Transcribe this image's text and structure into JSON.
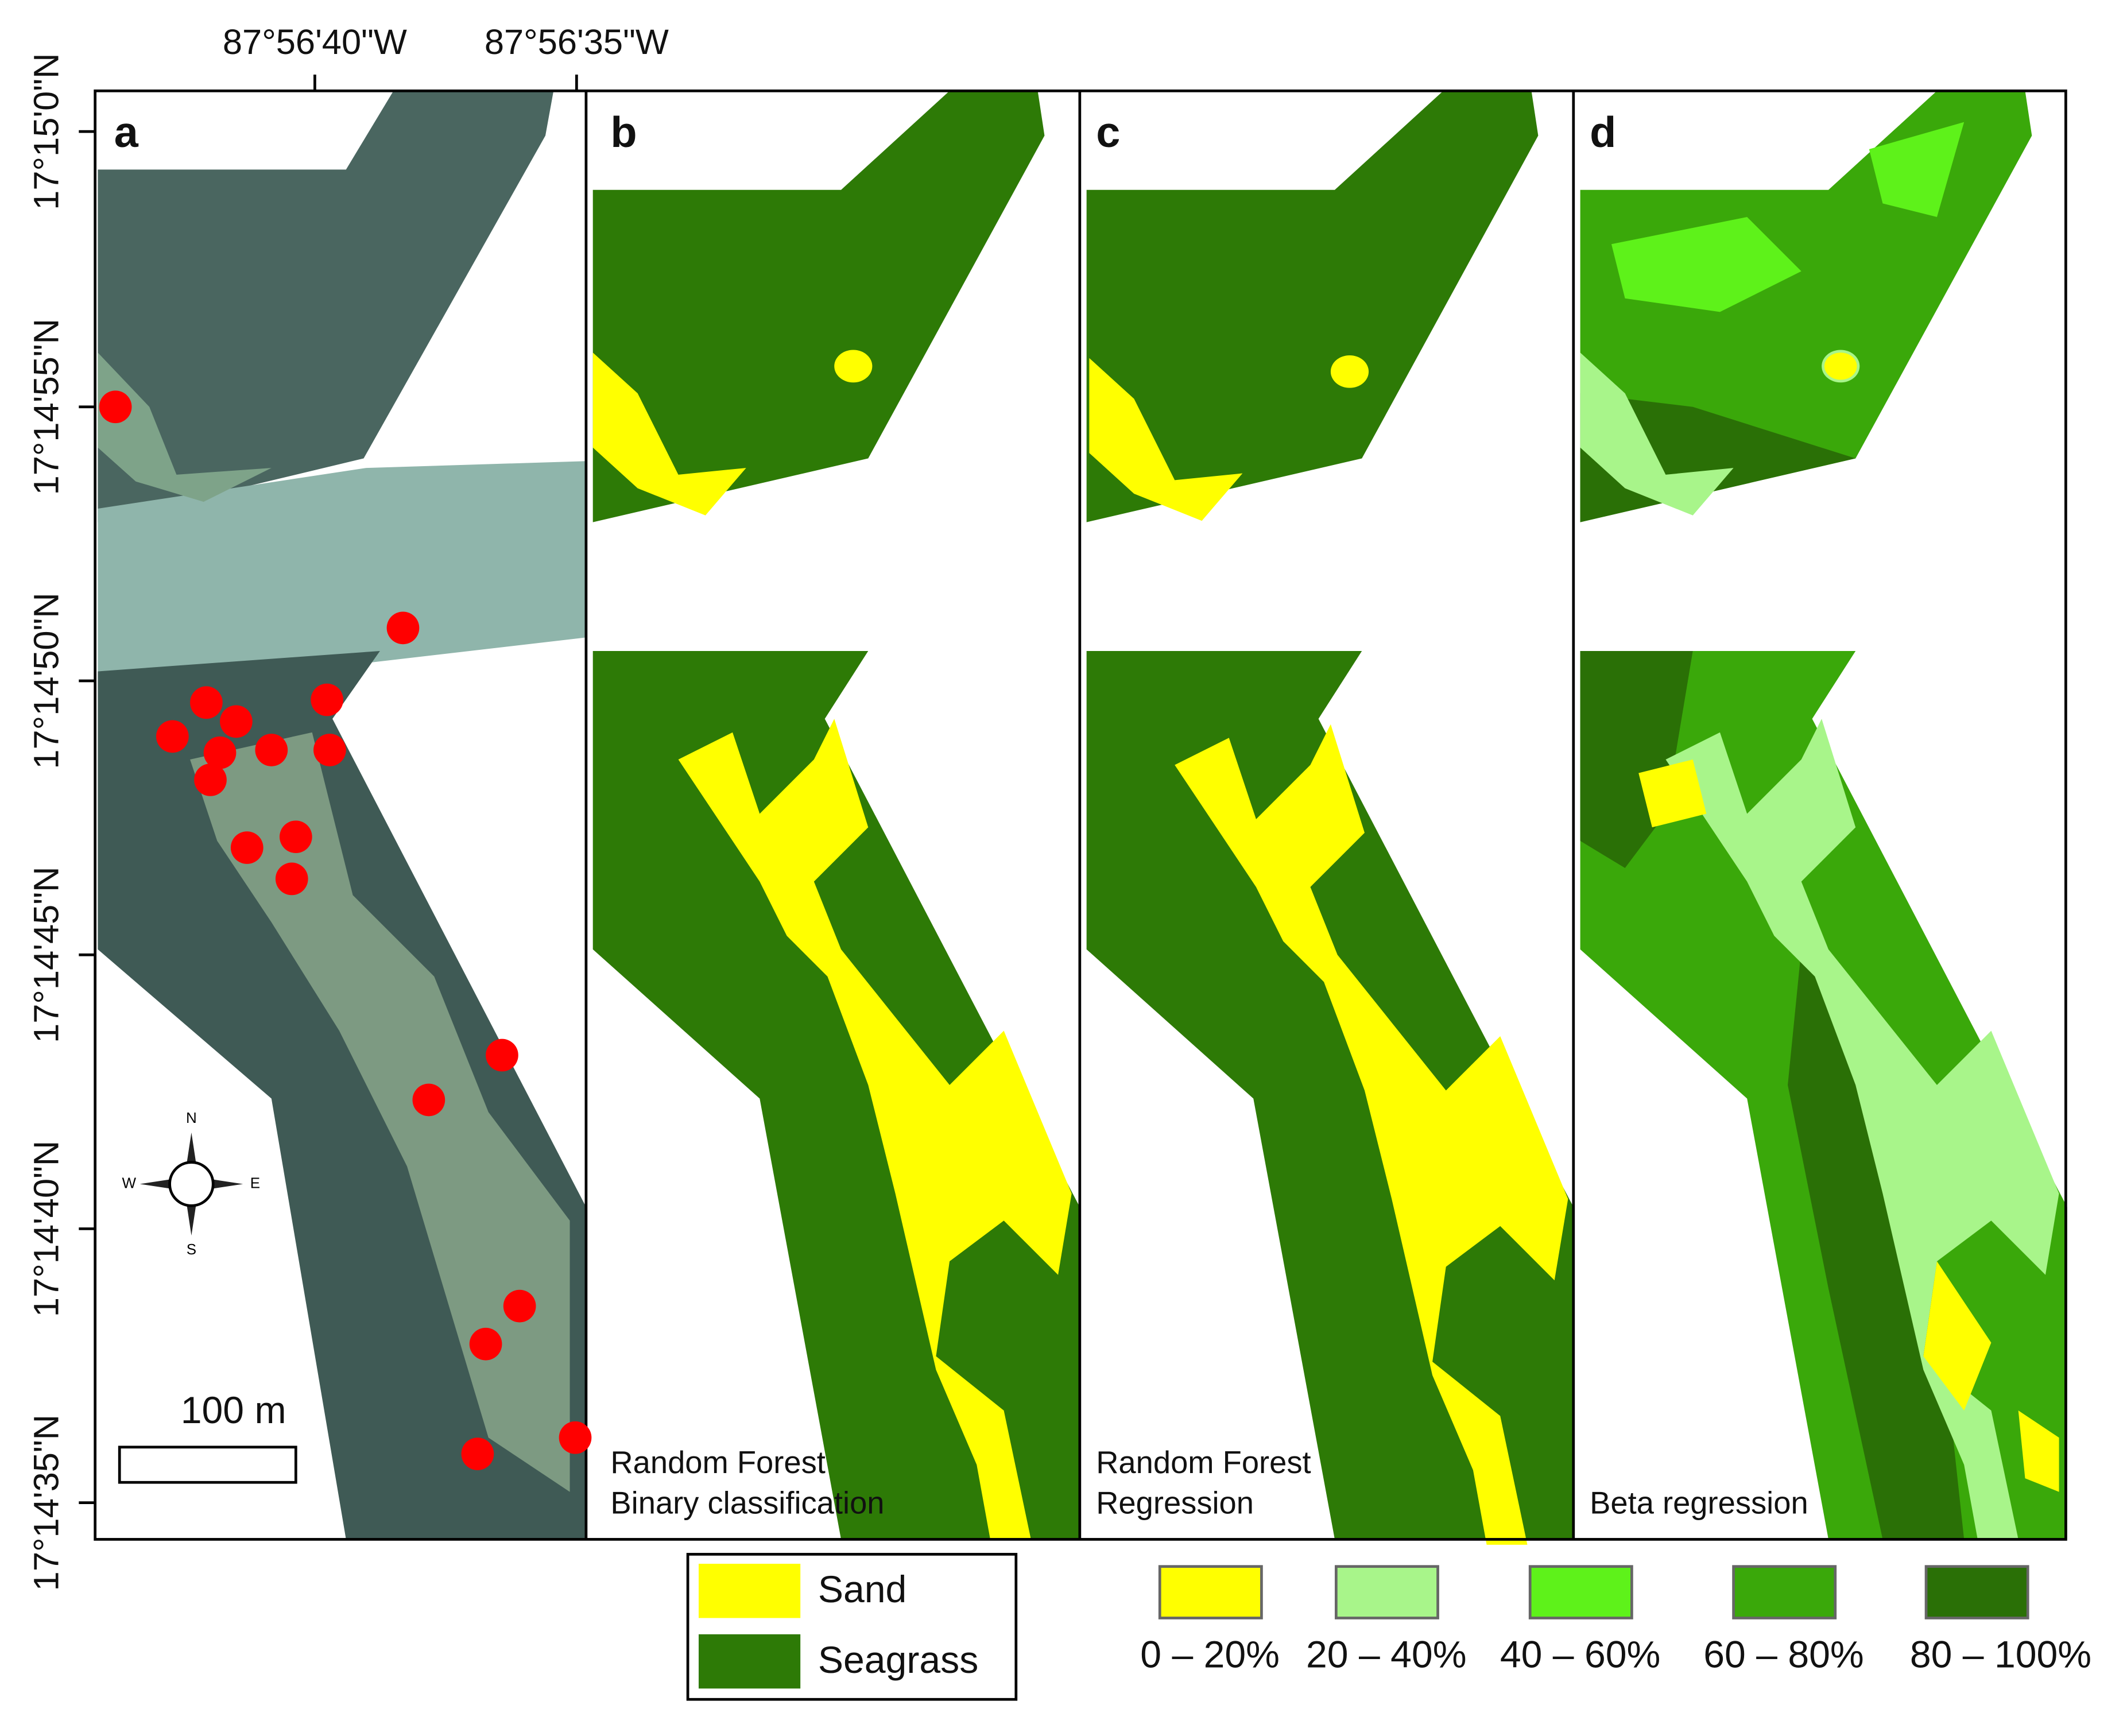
{
  "axes": {
    "longitude_labels": [
      "87°56'40\"W",
      "87°56'35\"W"
    ],
    "latitude_labels": [
      "17°15'0\"N",
      "17°14'55\"N",
      "17°14'50\"N",
      "17°14'45\"N",
      "17°14'40\"N",
      "17°14'35\"N"
    ]
  },
  "panels": [
    {
      "letter": "a"
    },
    {
      "letter": "b",
      "caption": [
        "Random Forest",
        "Binary classification"
      ]
    },
    {
      "letter": "c",
      "caption": [
        "Random Forest",
        "Regression"
      ]
    },
    {
      "letter": "d",
      "caption": [
        "Beta regression"
      ]
    }
  ],
  "scale_bar": {
    "label": "100 m"
  },
  "compass": {
    "north": "N",
    "east": "E",
    "south": "S",
    "west": "W"
  },
  "legend_binary": [
    {
      "label": "Sand",
      "color": "#ffff00"
    },
    {
      "label": "Seagrass",
      "color": "#2d7a06"
    }
  ],
  "legend_cover": [
    {
      "label": "0 – 20%",
      "color": "#ffff00"
    },
    {
      "label": "20 – 40%",
      "color": "#a8f58a"
    },
    {
      "label": "40 – 60%",
      "color": "#5ef21a"
    },
    {
      "label": "60 – 80%",
      "color": "#3aa80a"
    },
    {
      "label": "80 – 100%",
      "color": "#2a7006"
    }
  ]
}
